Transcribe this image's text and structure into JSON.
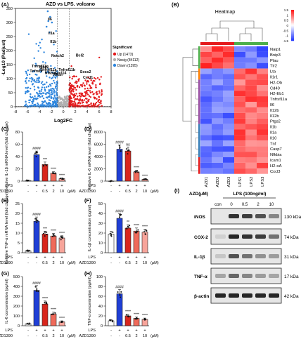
{
  "figure": {
    "colors": {
      "up": "#e31a1c",
      "nosig": "#b0b0b0",
      "down": "#2e86de",
      "blue": "#1f3fd6",
      "red1": "#d8261c",
      "red2": "#ef6a5a",
      "red3": "#f7a49a",
      "white": "#ffffff"
    }
  },
  "panelA": {
    "letter": "(A)",
    "title": "AZD vs LPS. volcano",
    "xlabel": "Log2FC",
    "ylabel": "-Log10 (Padjust)",
    "xticks": [
      "-8",
      "-6",
      "-4",
      "-2",
      "0",
      "2",
      "4",
      "6",
      "8"
    ],
    "yticks": [
      "0",
      "50",
      "100",
      "150",
      "200",
      "250",
      "300",
      "350"
    ],
    "legend_title": "Significant",
    "legend": [
      "Up (1473)",
      "Nosig (84112)",
      "Down (1395)"
    ],
    "labels": [
      "Il6",
      "Il1a",
      "Il1b",
      "Notch2",
      "Bcl2",
      "Tnfrsf13c",
      "Ikbke",
      "Tnfrsf11a",
      "Tnfrsf9",
      "Nfkbia",
      "Tnfrsf11b",
      "Nfkbi",
      "Cxcl14",
      "Socs2",
      "Cxcl1"
    ]
  },
  "panelB": {
    "letter": "(B)",
    "title": "Heatmap",
    "colorbar_ticks": [
      "1.5",
      "1",
      "0.5",
      "0",
      "-0.5",
      "-1",
      "-1.5"
    ],
    "columns": [
      "AZD1",
      "AZD2",
      "AZD3",
      "LPS1",
      "LPS2",
      "LPS3"
    ],
    "rows": [
      "Naip1",
      "Bnip3",
      "Plau",
      "Tlr2",
      "Lta",
      "Il1r1",
      "H2-Ob",
      "Cd40",
      "H2-Eb1",
      "Tnfrsf11a",
      "Il6",
      "Il12b",
      "Il12b",
      "Ptgs2",
      "Il1b",
      "Il1a",
      "Il10",
      "Tnf",
      "Casp7",
      "Nfkbia",
      "Icam1",
      "H2-oA",
      "Cxcl3"
    ]
  },
  "panelC": {
    "letter": "(C)",
    "ylabel": "Relative IL-1β mRNA level (fold change)",
    "yticks": [
      "0",
      "20",
      "40",
      "60",
      "80"
    ],
    "ymax": 80,
    "values": [
      1,
      43,
      27,
      13,
      4
    ],
    "sig": [
      "",
      "####",
      "***",
      "****",
      "****"
    ]
  },
  "panelD": {
    "letter": "(D)",
    "ylabel": "Relative IL-6 mRNA level (fold change)",
    "yticks": [
      "0",
      "2000",
      "4000",
      "6000",
      "8000"
    ],
    "ymax": 8000,
    "values": [
      10,
      5200,
      4900,
      1500,
      300
    ],
    "sig": [
      "",
      "####",
      "ns",
      "****",
      "****"
    ]
  },
  "panelE": {
    "letter": "(E)",
    "ylabel": "Relative TNF-α mRNA level (fold change)",
    "yticks": [
      "0",
      "5",
      "10",
      "15",
      "20",
      "25"
    ],
    "ymax": 25,
    "values": [
      1,
      16,
      9.5,
      8.5,
      7.5
    ],
    "sig": [
      "",
      "####",
      "***",
      "****",
      "****"
    ]
  },
  "panelF": {
    "letter": "(F)",
    "ylabel": "IL-1β concentration (pg/ml)",
    "yticks": [
      "0",
      "10",
      "20",
      "30",
      "40",
      "50"
    ],
    "ymax": 50,
    "values": [
      19,
      35,
      25,
      22,
      21
    ],
    "sig": [
      "",
      "####",
      "**",
      "****",
      "****"
    ]
  },
  "panelG": {
    "letter": "(G)",
    "ylabel": "IL-6 concentration (pg/ml)",
    "yticks": [
      "0",
      "100",
      "200",
      "300",
      "400",
      "500"
    ],
    "ymax": 500,
    "values": [
      20,
      360,
      220,
      120,
      40
    ],
    "sig": [
      "",
      "####",
      "****",
      "****",
      "****"
    ]
  },
  "panelH": {
    "letter": "(H)",
    "ylabel": "TNF-α concentration (pg/ml)",
    "yticks": [
      "0",
      "20",
      "40",
      "60",
      "80",
      "100"
    ],
    "ymax": 100,
    "values": [
      10,
      65,
      20,
      15,
      13
    ],
    "sig": [
      "",
      "####",
      "****",
      "****",
      "****"
    ]
  },
  "treatment": {
    "lps_label": "LPS",
    "azd_label": "AZD1390",
    "lps": [
      "-",
      "+",
      "+",
      "+",
      "+"
    ],
    "azd": [
      "-",
      "-",
      "0.5",
      "2",
      "10"
    ],
    "unit": "(μM)"
  },
  "panelI": {
    "letter": "(I)",
    "azd_header": "AZD(μM)",
    "lps_header": "LPS (100ng/ml)",
    "lanes": [
      "con",
      "0",
      "0.5",
      "2",
      "10"
    ],
    "proteins": [
      "iNOS",
      "COX-2",
      "IL-1β",
      "TNF-α",
      "β-actin"
    ],
    "sizes": [
      "130 kDa",
      "74 kDa",
      "31 kDa",
      "17 kDa",
      "42 kDa"
    ]
  }
}
